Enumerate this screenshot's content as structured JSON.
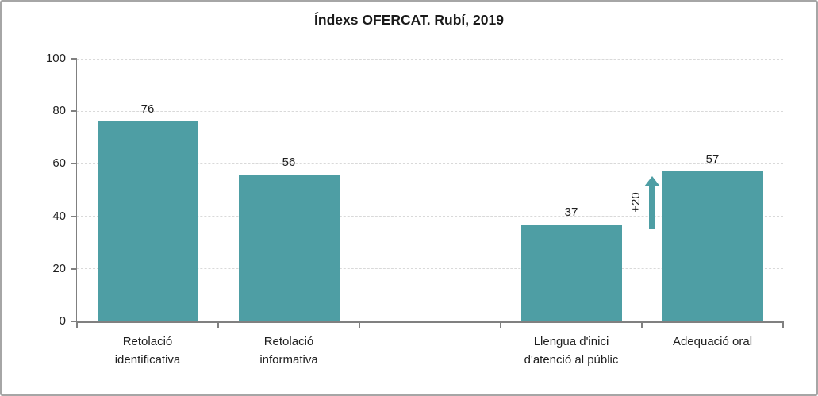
{
  "chart_data": {
    "type": "bar",
    "title": "Índexs OFERCAT. Rubí, 2019",
    "categories": [
      {
        "label": "Retolació identificativa",
        "lines": [
          "Retolació",
          "identificativa"
        ]
      },
      {
        "label": "Retolació informativa",
        "lines": [
          "Retolació",
          "informativa"
        ]
      },
      {
        "label": "",
        "lines": []
      },
      {
        "label": "Llengua d'inici d'atenció al públic",
        "lines": [
          "Llengua d'inici",
          "d'atenció al públic"
        ]
      },
      {
        "label": "Adequació oral",
        "lines": [
          "Adequació oral"
        ]
      }
    ],
    "values": [
      76,
      56,
      null,
      37,
      57
    ],
    "xlabel": "",
    "ylabel": "",
    "ylim": [
      0,
      100
    ],
    "yticks": [
      0,
      20,
      40,
      60,
      80,
      100
    ],
    "grid": {
      "horizontal": true,
      "style": "dashed"
    },
    "legend": {
      "visible": false
    },
    "annotation": {
      "text": "+20",
      "slot_index": 4,
      "from_value": 37,
      "to_value": 57
    },
    "colors": {
      "bar": "#4E9EA4",
      "arrow": "#4E9EA4",
      "axis": "#808080",
      "grid": "#D9D9D9",
      "text": "#1F1F1F",
      "title": "#1A1A1A",
      "border": "#A6A6A6",
      "background": "#FFFFFF"
    }
  }
}
